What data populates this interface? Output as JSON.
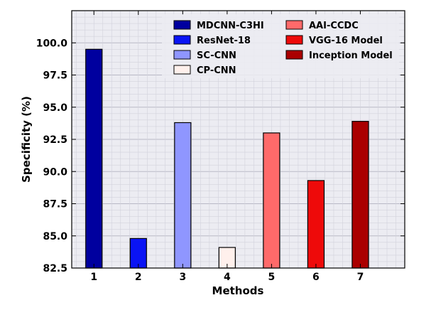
{
  "chart_data": {
    "type": "bar",
    "title": "",
    "xlabel": "Methods",
    "ylabel": "Specificity (%)",
    "categories": [
      "1",
      "2",
      "3",
      "4",
      "5",
      "6",
      "7"
    ],
    "values": [
      99.5,
      84.8,
      93.8,
      84.1,
      93.0,
      89.3,
      93.9
    ],
    "series_names": [
      "MDCNN-C3HI",
      "ResNet-18",
      "SC-CNN",
      "CP-CNN",
      "AAI-CCDC",
      "VGG-16 Model",
      "Inception Model"
    ],
    "colors": [
      "#00009f",
      "#0a14f5",
      "#8f96ff",
      "#fff0ec",
      "#ff6a6a",
      "#ee0a0a",
      "#aa0000"
    ],
    "ylim": [
      82.5,
      102.5
    ],
    "yticks": [
      "82.5",
      "85.0",
      "87.5",
      "90.0",
      "92.5",
      "95.0",
      "97.5",
      "100.0"
    ],
    "grid": true,
    "legend_position": "top-right"
  }
}
